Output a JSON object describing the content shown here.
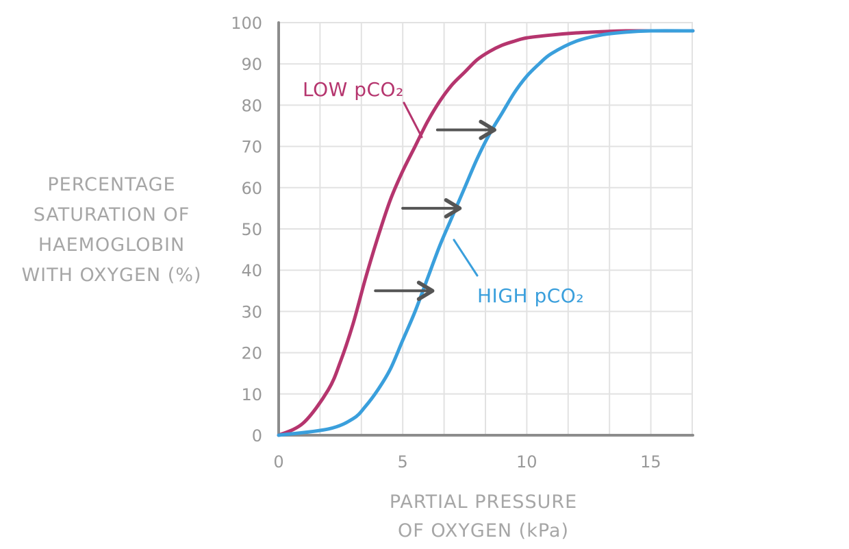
{
  "chart_data": {
    "type": "line",
    "title": "",
    "xlabel": [
      "PARTIAL PRESSURE",
      "OF OXYGEN (kPa)"
    ],
    "ylabel": [
      "PERCENTAGE",
      "SATURATION OF",
      "HAEMOGLOBIN",
      "WITH OXYGEN (%)"
    ],
    "xlim": [
      0,
      16.7
    ],
    "ylim": [
      0,
      100
    ],
    "x_ticks": [
      0,
      5,
      10,
      15
    ],
    "y_ticks": [
      0,
      10,
      20,
      30,
      40,
      50,
      60,
      70,
      80,
      90,
      100
    ],
    "grid": true,
    "series": [
      {
        "name": "LOW pCO₂",
        "color": "#b5356e",
        "x": [
          0,
          1,
          2,
          2.5,
          3,
          3.5,
          4,
          4.5,
          5,
          5.5,
          6,
          6.5,
          7,
          7.5,
          8,
          8.5,
          9,
          9.5,
          10,
          11,
          12,
          13,
          14,
          15,
          16.7
        ],
        "y": [
          0,
          3,
          11,
          18,
          27,
          38,
          48,
          57,
          64,
          70,
          76,
          81,
          85,
          88,
          91,
          93,
          94.5,
          95.5,
          96.3,
          97,
          97.5,
          97.8,
          98,
          98,
          98
        ]
      },
      {
        "name": "HIGH pCO₂",
        "color": "#3a9fdc",
        "x": [
          0,
          2,
          3,
          3.5,
          4,
          4.5,
          5,
          5.5,
          6,
          6.5,
          7,
          7.5,
          8,
          8.5,
          9,
          9.5,
          10,
          10.5,
          11,
          12,
          13,
          14,
          15,
          16.7
        ],
        "y": [
          0,
          1.5,
          4,
          7,
          11,
          16,
          23,
          30,
          38,
          46,
          53,
          60,
          67,
          73,
          78,
          83,
          87,
          90,
          92.5,
          95.5,
          97,
          97.7,
          98,
          98
        ]
      }
    ],
    "arrows": [
      {
        "from": [
          3.9,
          35
        ],
        "to": [
          6.2,
          35
        ]
      },
      {
        "from": [
          5.0,
          55
        ],
        "to": [
          7.3,
          55
        ]
      },
      {
        "from": [
          6.4,
          74
        ],
        "to": [
          8.7,
          74
        ]
      }
    ],
    "arrow_color": "#555555",
    "axis_color": "#8c8c8c",
    "grid_color": "#e2e2e2"
  }
}
